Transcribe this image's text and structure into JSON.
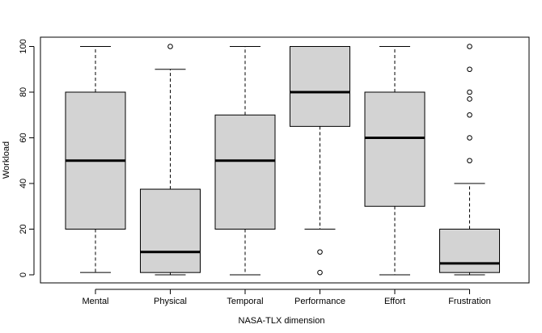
{
  "chart_data": {
    "type": "boxplot",
    "xlabel": "NASA-TLX dimension",
    "ylabel": "Workload",
    "ylim": [
      -3,
      103
    ],
    "yticks": [
      "0",
      "20",
      "40",
      "60",
      "80",
      "100"
    ],
    "grid": false,
    "box_fill": "#d3d3d3",
    "categories": [
      "Mental",
      "Physical",
      "Temporal",
      "Performance",
      "Effort",
      "Frustration"
    ],
    "boxes": [
      {
        "min": 1,
        "q1": 20,
        "median": 50,
        "q3": 80,
        "max": 100,
        "outliers": []
      },
      {
        "min": 0,
        "q1": 1,
        "median": 10,
        "q3": 37.5,
        "max": 90,
        "outliers": [
          100
        ]
      },
      {
        "min": 0,
        "q1": 20,
        "median": 50,
        "q3": 70,
        "max": 100,
        "outliers": []
      },
      {
        "min": 20,
        "q1": 65,
        "median": 80,
        "q3": 100,
        "max": 100,
        "outliers": [
          10,
          1
        ]
      },
      {
        "min": 0,
        "q1": 30,
        "median": 60,
        "q3": 80,
        "max": 100,
        "outliers": []
      },
      {
        "min": 0,
        "q1": 1,
        "median": 5,
        "q3": 20,
        "max": 40,
        "outliers": [
          50,
          60,
          70,
          77,
          80,
          90,
          100
        ]
      }
    ]
  }
}
